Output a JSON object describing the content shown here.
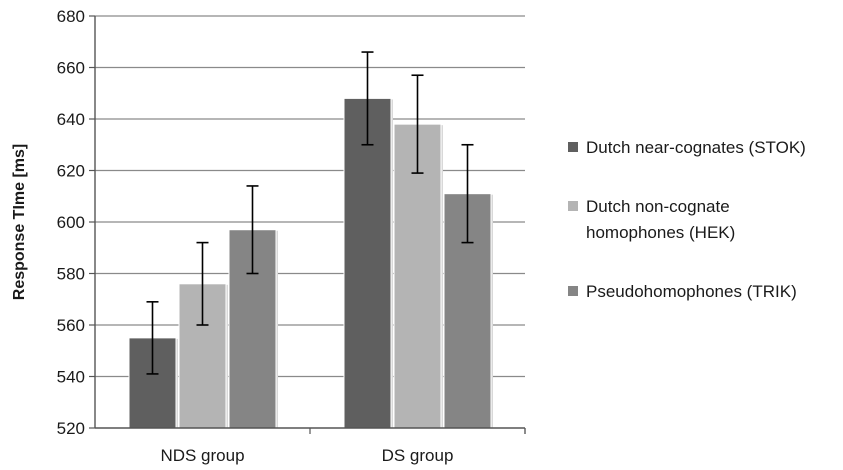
{
  "chart_data": {
    "type": "bar",
    "title": "",
    "xlabel": "",
    "ylabel": "Response TIme [ms]",
    "ylim": [
      520,
      680
    ],
    "ytick_step": 20,
    "grid": true,
    "legend_position": "right",
    "categories": [
      "NDS group",
      "DS group"
    ],
    "series": [
      {
        "name": "Dutch near-cognates (STOK)",
        "legend_lines": [
          "Dutch near-cognates (STOK)"
        ],
        "color": "#5f5f5f",
        "values": [
          555,
          648
        ],
        "error_low": [
          541,
          630
        ],
        "error_high": [
          569,
          666
        ]
      },
      {
        "name": "Dutch non-cognate homophones (HEK)",
        "legend_lines": [
          "Dutch non-cognate",
          "homophones (HEK)"
        ],
        "color": "#b4b4b4",
        "values": [
          576,
          638
        ],
        "error_low": [
          560,
          619
        ],
        "error_high": [
          592,
          657
        ]
      },
      {
        "name": "Pseudohomophones (TRIK)",
        "legend_lines": [
          "Pseudohomophones (TRIK)"
        ],
        "color": "#858585",
        "values": [
          597,
          611
        ],
        "error_low": [
          580,
          592
        ],
        "error_high": [
          614,
          630
        ]
      }
    ]
  }
}
